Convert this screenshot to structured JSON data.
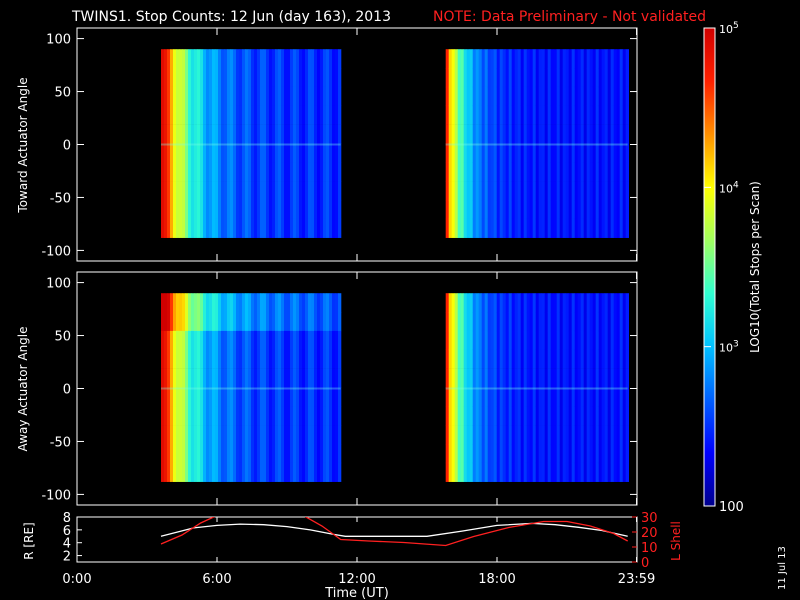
{
  "title": "TWINS1. Stop Counts: 12 Jun (day 163), 2013",
  "note": "NOTE: Data Preliminary - Not validated",
  "date_stamp": "11 Jul 13",
  "colors": {
    "note": "#ff2020",
    "ephem_r": "#ffffff",
    "ephem_lshell": "#ff2020",
    "axis": "#ffffff"
  },
  "chart_data": [
    {
      "type": "heatmap",
      "panel": "toward",
      "ylabel": "Toward Actuator Angle",
      "ylim": [
        -110,
        110
      ],
      "yticks": [
        -100,
        -50,
        0,
        50,
        100
      ],
      "xlim": [
        0,
        24
      ],
      "data_intervals_hours": [
        [
          3.6,
          11.3
        ],
        [
          15.8,
          23.6
        ]
      ],
      "angle_range": [
        -88,
        90
      ]
    },
    {
      "type": "heatmap",
      "panel": "away",
      "ylabel": "Away Actuator Angle",
      "ylim": [
        -110,
        110
      ],
      "yticks": [
        -100,
        -50,
        0,
        50,
        100
      ],
      "xlim": [
        0,
        24
      ],
      "data_intervals_hours": [
        [
          3.6,
          11.3
        ],
        [
          15.8,
          23.6
        ]
      ],
      "angle_range": [
        -88,
        90
      ]
    },
    {
      "type": "line",
      "panel": "ephemeris",
      "xlabel": "Time (UT)",
      "xticks": [
        "0:00",
        "6:00",
        "12:00",
        "18:00",
        "23:59"
      ],
      "xtick_values": [
        0,
        6,
        12,
        18,
        23.98
      ],
      "ylabel_left": "R [RE]",
      "ylim_left": [
        1,
        8
      ],
      "yticks_left": [
        2,
        4,
        6,
        8
      ],
      "ylabel_right": "L Shell",
      "ylim_right": [
        0,
        30
      ],
      "yticks_right": [
        0,
        10,
        20,
        30
      ],
      "series": [
        {
          "name": "R",
          "axis": "left",
          "x": [
            3.6,
            5.0,
            6.0,
            7.0,
            8.0,
            9.0,
            10.0,
            11.0,
            11.5,
            13.0,
            15.0,
            16.5,
            18.0,
            19.5,
            20.5,
            21.5,
            22.5,
            23.6
          ],
          "y": [
            5.0,
            6.3,
            6.7,
            6.9,
            6.8,
            6.5,
            6.0,
            5.3,
            5.0,
            5.0,
            5.0,
            5.8,
            6.7,
            7.0,
            6.8,
            6.4,
            5.9,
            5.0
          ]
        },
        {
          "name": "L Shell",
          "axis": "right",
          "x": [
            3.6,
            4.5,
            5.3,
            6.0,
            9.7,
            10.5,
            11.3,
            12.5,
            14.0,
            15.8,
            17.0,
            18.5,
            20.0,
            21.0,
            22.0,
            23.0,
            23.6
          ],
          "y": [
            12,
            18,
            26,
            31,
            31,
            24,
            15,
            14,
            13,
            11,
            17,
            23,
            27,
            27,
            24,
            19,
            14
          ]
        }
      ]
    },
    {
      "type": "colorbar",
      "label": "LOG10(Total Stops per Scan)",
      "range": [
        100,
        100000
      ],
      "ticks": [
        "100",
        "10^3",
        "10^4",
        "10^5"
      ],
      "tick_values": [
        100,
        1000,
        10000,
        100000
      ],
      "colormap": [
        "#00008c",
        "#0000ff",
        "#0060ff",
        "#00c0ff",
        "#30ffd0",
        "#a0ff60",
        "#ffff00",
        "#ff9000",
        "#ff2000",
        "#d00000"
      ]
    }
  ]
}
